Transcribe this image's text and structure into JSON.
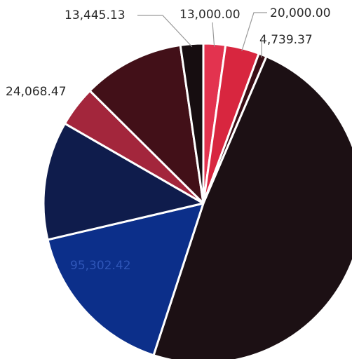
{
  "chart_data": {
    "type": "pie",
    "title": "",
    "slices": [
      {
        "label": "13,000.00",
        "value": 13000.0,
        "color": "#e3334f"
      },
      {
        "label": "20,000.00",
        "value": 20000.0,
        "color": "#d8263f"
      },
      {
        "label": "4,739.37",
        "value": 4739.37,
        "color": "#3a0f16"
      },
      {
        "label": "",
        "value": 284000,
        "color": "#1c1014"
      },
      {
        "label": "95,302.42",
        "value": 95302.42,
        "color": "#0c2f8a"
      },
      {
        "label": "",
        "value": 70000,
        "color": "#0f1c4c"
      },
      {
        "label": "24,068.47",
        "value": 24068.47,
        "color": "#a3263c"
      },
      {
        "label": "",
        "value": 60000,
        "color": "#421018"
      },
      {
        "label": "13,445.13",
        "value": 13445.13,
        "color": "#160d10"
      }
    ]
  }
}
